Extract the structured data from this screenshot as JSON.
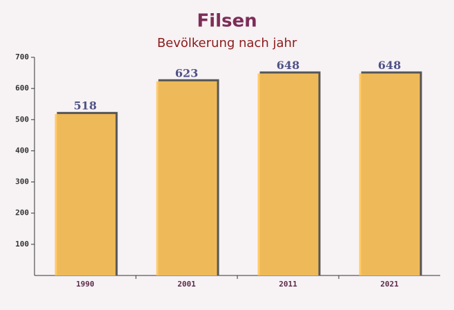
{
  "chart_data": {
    "type": "bar",
    "title": "Filsen",
    "subtitle": "Bevölkerung nach jahr",
    "categories": [
      "1990",
      "2001",
      "2011",
      "2021"
    ],
    "values": [
      518,
      623,
      648,
      648
    ],
    "color": "#ffc55a",
    "ylim": [
      0,
      700
    ],
    "yticks": [
      100,
      200,
      300,
      400,
      500,
      600,
      700
    ]
  }
}
